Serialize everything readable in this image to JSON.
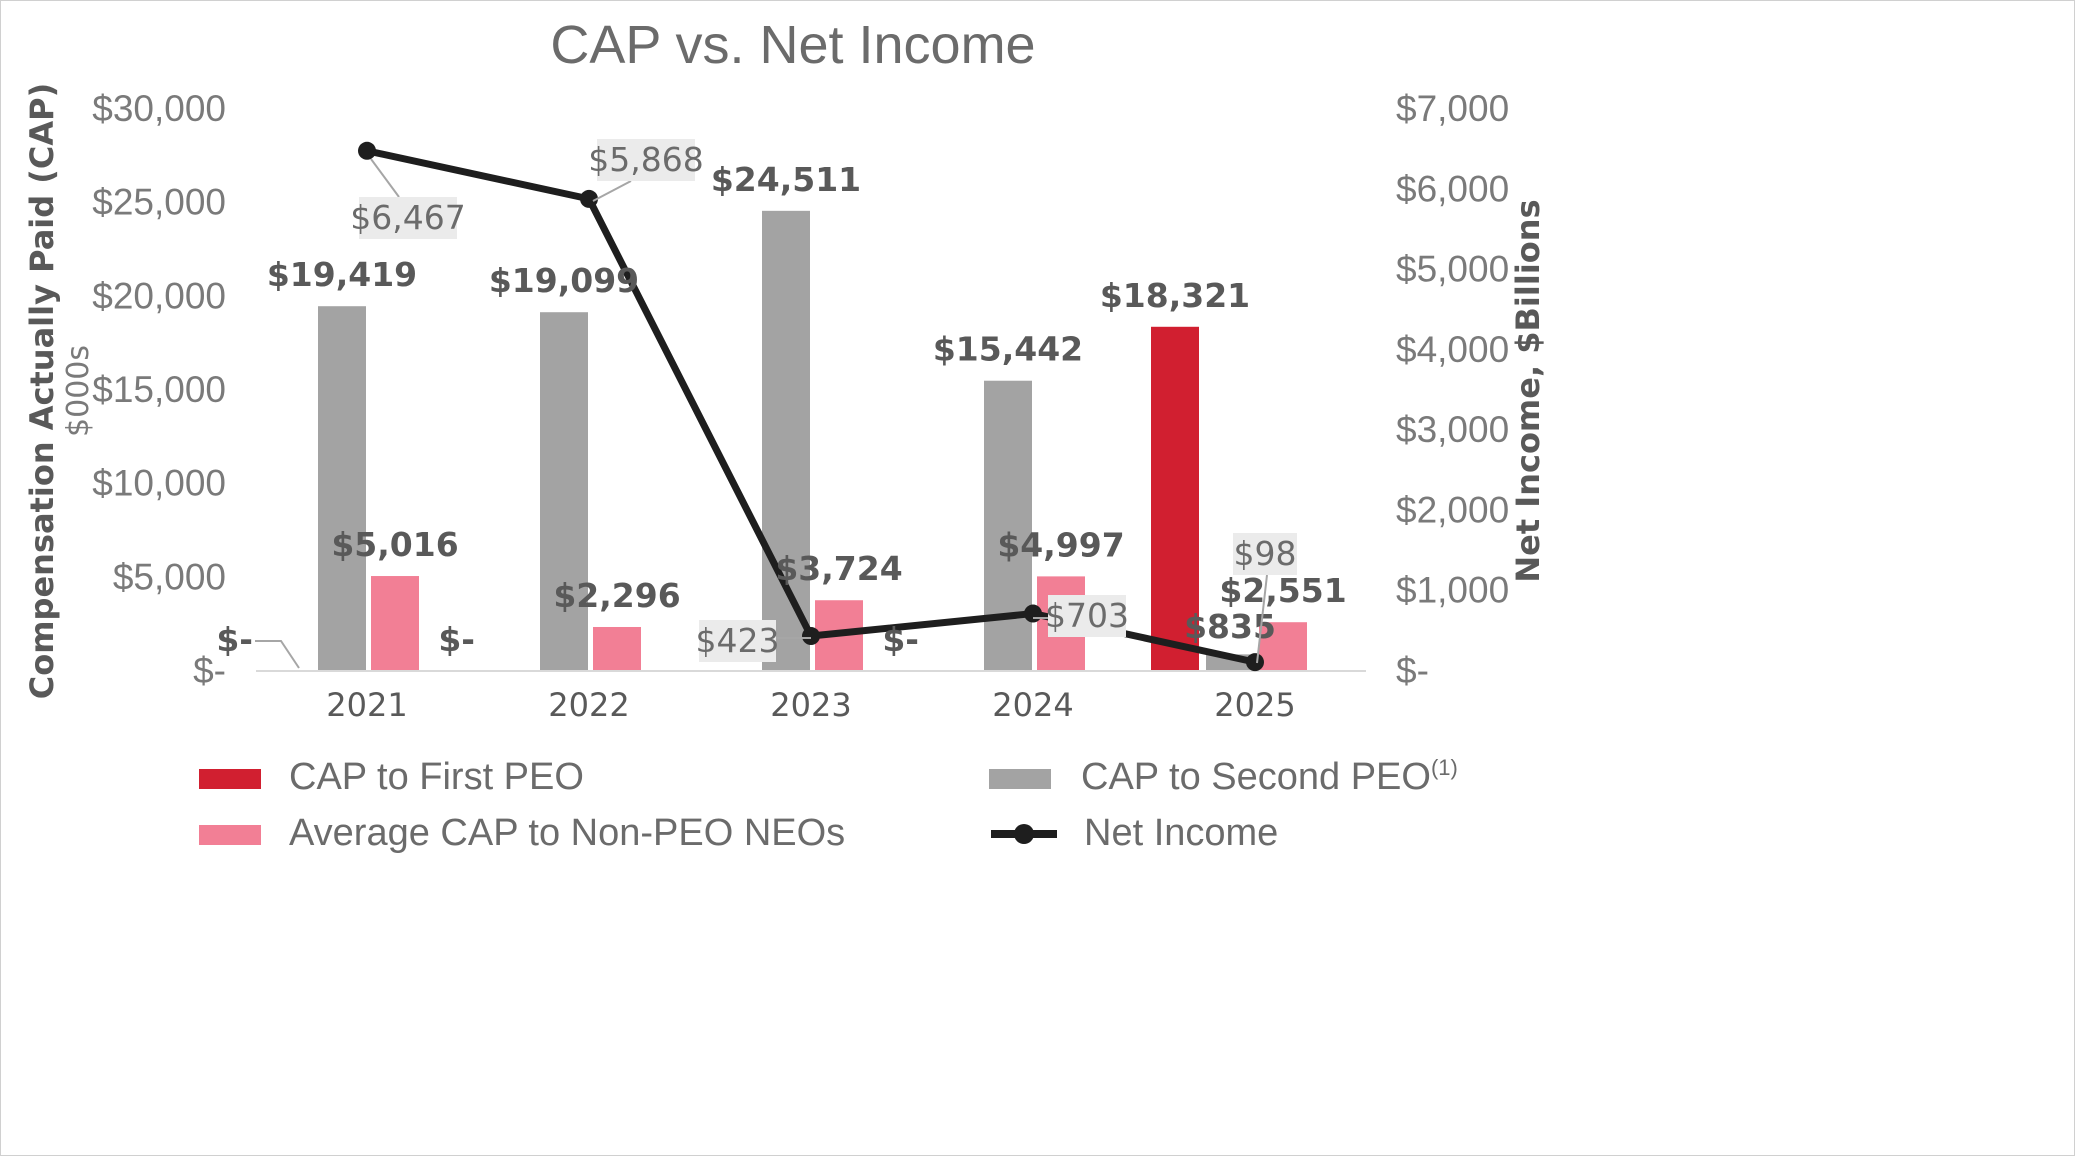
{
  "chart_data": {
    "type": "bar",
    "title": "CAP vs. Net Income",
    "categories": [
      "2021",
      "2022",
      "2023",
      "2024",
      "2025"
    ],
    "y_left": {
      "label": "Compensation Actually Paid (CAP)",
      "sublabel": "$000s",
      "range": [
        0,
        30000
      ],
      "ticks": [
        {
          "value": 0,
          "label": "$-"
        },
        {
          "value": 5000,
          "label": "$5,000"
        },
        {
          "value": 10000,
          "label": "$10,000"
        },
        {
          "value": 15000,
          "label": "$15,000"
        },
        {
          "value": 20000,
          "label": "$20,000"
        },
        {
          "value": 25000,
          "label": "$25,000"
        },
        {
          "value": 30000,
          "label": "$30,000"
        }
      ]
    },
    "y_right": {
      "label": "Net Income, $Billions",
      "range": [
        0,
        7000
      ],
      "ticks": [
        {
          "value": 0,
          "label": "$-"
        },
        {
          "value": 1000,
          "label": "$1,000"
        },
        {
          "value": 2000,
          "label": "$2,000"
        },
        {
          "value": 3000,
          "label": "$3,000"
        },
        {
          "value": 4000,
          "label": "$4,000"
        },
        {
          "value": 5000,
          "label": "$5,000"
        },
        {
          "value": 6000,
          "label": "$6,000"
        },
        {
          "value": 7000,
          "label": "$7,000"
        }
      ]
    },
    "series": [
      {
        "name": "CAP to First PEO",
        "type": "bar",
        "axis": "left",
        "color": "#d11f30",
        "values": [
          0,
          0,
          null,
          0,
          18321
        ],
        "labels": [
          "$-",
          "$-",
          "",
          "$-",
          "$18,321"
        ]
      },
      {
        "name": "CAP to Second PEO",
        "name_sup": "(1)",
        "type": "bar",
        "axis": "left",
        "color": "#a3a3a3",
        "values": [
          19419,
          19099,
          24511,
          15442,
          835
        ],
        "labels": [
          "$19,419",
          "$19,099",
          "$24,511",
          "$15,442",
          "$835"
        ]
      },
      {
        "name": "Average CAP to Non-PEO NEOs",
        "type": "bar",
        "axis": "left",
        "color": "#f27f95",
        "values": [
          5016,
          2296,
          3724,
          4997,
          2551
        ],
        "labels": [
          "$5,016",
          "$2,296",
          "$3,724",
          "$4,997",
          "$2,551"
        ]
      },
      {
        "name": "Net Income",
        "type": "line",
        "axis": "right",
        "color": "#1e1e1e",
        "values": [
          6467,
          5868,
          423,
          703,
          98
        ],
        "labels": [
          "$6,467",
          "$5,868",
          "$423",
          "$703",
          "$98"
        ]
      }
    ],
    "legend_placement": "bottom",
    "grid": false
  }
}
